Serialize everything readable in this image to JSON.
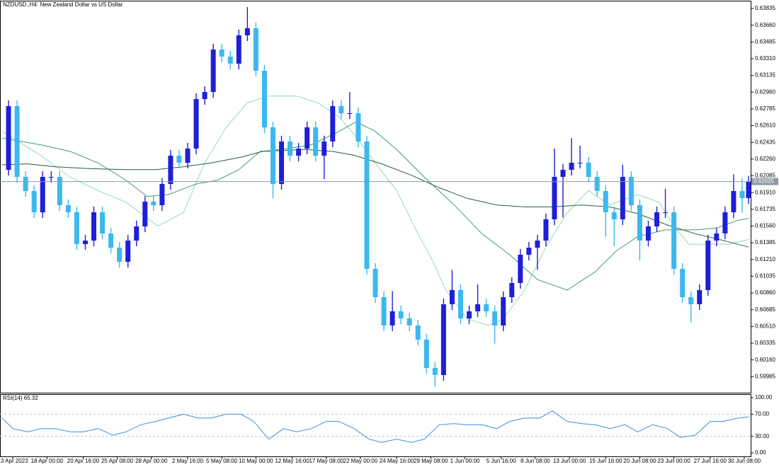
{
  "chart_data": [
    {
      "type": "candlestick",
      "title": "NZDUSD.,H4:  New Zealand Dollar vs US Dollar",
      "up_color": "#1f1fd8",
      "down_color": "#3cb8f0",
      "xlim": [
        0,
        352
      ],
      "ylim": [
        0.59817,
        0.63909
      ],
      "xticks": [
        {
          "value": 6,
          "label": "13 Apr 2023"
        },
        {
          "value": 22,
          "label": "18 Apr 00:00"
        },
        {
          "value": 39,
          "label": "20 Apr 16:00"
        },
        {
          "value": 55,
          "label": "25 Apr 08:00"
        },
        {
          "value": 71,
          "label": "28 Apr 00:00"
        },
        {
          "value": 88,
          "label": "2 May 16:00"
        },
        {
          "value": 104,
          "label": "5 May 08:00"
        },
        {
          "value": 120,
          "label": "10 May 00:00"
        },
        {
          "value": 137,
          "label": "12 May 16:00"
        },
        {
          "value": 153,
          "label": "17 May 08:00"
        },
        {
          "value": 169,
          "label": "22 May 00:00"
        },
        {
          "value": 186,
          "label": "24 May 16:00"
        },
        {
          "value": 202,
          "label": "29 May 08:00"
        },
        {
          "value": 218,
          "label": "1 Jun 00:00"
        },
        {
          "value": 235,
          "label": "5 Jun 16:00"
        },
        {
          "value": 251,
          "label": "8 Jun 08:00"
        },
        {
          "value": 267,
          "label": "13 Jun 00:00"
        },
        {
          "value": 284,
          "label": "15 Jun 16:00"
        },
        {
          "value": 300,
          "label": "20 Jun 08:00"
        },
        {
          "value": 316,
          "label": "23 Jun 00:00"
        },
        {
          "value": 333,
          "label": "27 Jun 16:00"
        },
        {
          "value": 349,
          "label": "30 Jun 08:00"
        }
      ],
      "yticks": [
        {
          "value": 0.63835,
          "label": "0.63835"
        },
        {
          "value": 0.6366,
          "label": "0.63660"
        },
        {
          "value": 0.63485,
          "label": "0.63485"
        },
        {
          "value": 0.6331,
          "label": "0.63310"
        },
        {
          "value": 0.63135,
          "label": "0.63135"
        },
        {
          "value": 0.6296,
          "label": "0.62960"
        },
        {
          "value": 0.62785,
          "label": "0.62785"
        },
        {
          "value": 0.6261,
          "label": "0.62610"
        },
        {
          "value": 0.62435,
          "label": "0.62435"
        },
        {
          "value": 0.6226,
          "label": "0.62260"
        },
        {
          "value": 0.62085,
          "label": "0.62085"
        },
        {
          "value": 0.6191,
          "label": "0.61910"
        },
        {
          "value": 0.61735,
          "label": "0.61735"
        },
        {
          "value": 0.6156,
          "label": "0.61560"
        },
        {
          "value": 0.61385,
          "label": "0.61385"
        },
        {
          "value": 0.6121,
          "label": "0.61210"
        },
        {
          "value": 0.61035,
          "label": "0.61035"
        },
        {
          "value": 0.6086,
          "label": "0.60860"
        },
        {
          "value": 0.60685,
          "label": "0.60685"
        },
        {
          "value": 0.6051,
          "label": "0.60510"
        },
        {
          "value": 0.60335,
          "label": "0.60335"
        },
        {
          "value": 0.6016,
          "label": "0.60160"
        },
        {
          "value": 0.59985,
          "label": "0.59985"
        }
      ],
      "current_price": 0.62025,
      "x": [
        4,
        8,
        12,
        16,
        20,
        24,
        28,
        32,
        36,
        40,
        44,
        48,
        52,
        56,
        60,
        64,
        68,
        72,
        76,
        80,
        84,
        88,
        92,
        96,
        100,
        104,
        108,
        112,
        116,
        120,
        124,
        128,
        132,
        136,
        140,
        144,
        148,
        152,
        156,
        160,
        164,
        168,
        172,
        176,
        180,
        184,
        188,
        192,
        196,
        200,
        204,
        208,
        212,
        216,
        220,
        224,
        228,
        232,
        236,
        240,
        244,
        248,
        252,
        256,
        260,
        264,
        268,
        272,
        276,
        280,
        284,
        288,
        292,
        296,
        300,
        304,
        308,
        312,
        316,
        320,
        324,
        328,
        332,
        336,
        340,
        344,
        348,
        351
      ],
      "open": [
        0.62148,
        0.62814,
        0.62074,
        0.61926,
        0.61704,
        0.62074,
        0.62074,
        0.61778,
        0.61704,
        0.61371,
        0.61408,
        0.61704,
        0.61482,
        0.61334,
        0.61186,
        0.61408,
        0.61556,
        0.61815,
        0.61778,
        0.62,
        0.62296,
        0.62222,
        0.6237,
        0.62888,
        0.62962,
        0.63406,
        0.63332,
        0.63258,
        0.63554,
        0.63628,
        0.63184,
        0.62592,
        0.62,
        0.62444,
        0.62296,
        0.6237,
        0.62592,
        0.62296,
        0.62444,
        0.62814,
        0.6274,
        0.6274,
        0.62444,
        0.61112,
        0.60816,
        0.6052,
        0.60668,
        0.60594,
        0.6052,
        0.60372,
        0.60076,
        0.60002,
        0.60742,
        0.6089,
        0.60594,
        0.60668,
        0.60742,
        0.60668,
        0.6052,
        0.60816,
        0.60964,
        0.6126,
        0.61334,
        0.61408,
        0.6163,
        0.62074,
        0.62148,
        0.62222,
        0.62222,
        0.62074,
        0.61926,
        0.61704,
        0.6163,
        0.62074,
        0.61778,
        0.61408,
        0.61556,
        0.61704,
        0.61704,
        0.61112,
        0.60816,
        0.60742,
        0.6089,
        0.61408,
        0.61482,
        0.61704,
        0.61926,
        0.61852
      ],
      "high": [
        0.62874,
        0.62874,
        0.62134,
        0.61986,
        0.62134,
        0.62134,
        0.62134,
        0.61838,
        0.61764,
        0.61468,
        0.61764,
        0.61764,
        0.61542,
        0.61394,
        0.61468,
        0.61616,
        0.61875,
        0.61875,
        0.6206,
        0.62356,
        0.62356,
        0.6243,
        0.62948,
        0.63022,
        0.63466,
        0.63466,
        0.63392,
        0.63614,
        0.6385,
        0.63688,
        0.63244,
        0.62652,
        0.62504,
        0.62504,
        0.6243,
        0.62652,
        0.62652,
        0.62504,
        0.62874,
        0.62874,
        0.6296,
        0.628,
        0.62504,
        0.61172,
        0.60876,
        0.6088,
        0.60728,
        0.60654,
        0.6058,
        0.60432,
        0.60136,
        0.60802,
        0.611,
        0.6095,
        0.60728,
        0.6095,
        0.60802,
        0.60728,
        0.60876,
        0.61024,
        0.6132,
        0.61394,
        0.61468,
        0.6169,
        0.6237,
        0.62208,
        0.6248,
        0.624,
        0.62282,
        0.62134,
        0.61986,
        0.61764,
        0.622,
        0.62134,
        0.61838,
        0.61616,
        0.61764,
        0.6195,
        0.61764,
        0.61172,
        0.60876,
        0.6095,
        0.61468,
        0.61542,
        0.61764,
        0.621,
        0.6206,
        0.62085
      ],
      "low": [
        0.62088,
        0.62014,
        0.61866,
        0.61644,
        0.61644,
        0.62014,
        0.61718,
        0.61644,
        0.61311,
        0.61311,
        0.61348,
        0.61422,
        0.61274,
        0.61126,
        0.61126,
        0.61348,
        0.61496,
        0.61718,
        0.61718,
        0.6194,
        0.62162,
        0.62162,
        0.6231,
        0.62828,
        0.62902,
        0.63272,
        0.63198,
        0.63198,
        0.63494,
        0.63124,
        0.62532,
        0.6185,
        0.6194,
        0.62236,
        0.62236,
        0.6231,
        0.62236,
        0.6205,
        0.62384,
        0.6268,
        0.6268,
        0.62384,
        0.61052,
        0.60756,
        0.6046,
        0.6046,
        0.60534,
        0.6046,
        0.60312,
        0.60016,
        0.5988,
        0.59942,
        0.60682,
        0.60534,
        0.60534,
        0.60608,
        0.60608,
        0.6033,
        0.6046,
        0.60756,
        0.60904,
        0.612,
        0.611,
        0.61348,
        0.6157,
        0.6165,
        0.62088,
        0.62162,
        0.62014,
        0.61866,
        0.6145,
        0.6135,
        0.6157,
        0.61718,
        0.612,
        0.61348,
        0.61496,
        0.61644,
        0.61052,
        0.60756,
        0.6055,
        0.60682,
        0.6083,
        0.61348,
        0.61422,
        0.61644,
        0.617,
        0.61792
      ],
      "close": [
        0.62814,
        0.62074,
        0.61926,
        0.61704,
        0.62074,
        0.62074,
        0.61778,
        0.61704,
        0.61371,
        0.61408,
        0.61704,
        0.61482,
        0.61334,
        0.61186,
        0.61408,
        0.61556,
        0.61815,
        0.61778,
        0.62,
        0.62296,
        0.62222,
        0.6237,
        0.62888,
        0.62962,
        0.63406,
        0.63332,
        0.63258,
        0.63554,
        0.63628,
        0.63184,
        0.62592,
        0.62,
        0.62444,
        0.62296,
        0.6237,
        0.62592,
        0.62296,
        0.62444,
        0.62814,
        0.6274,
        0.6274,
        0.62444,
        0.61112,
        0.60816,
        0.6052,
        0.60668,
        0.60594,
        0.6052,
        0.60372,
        0.60076,
        0.60002,
        0.60742,
        0.6089,
        0.60594,
        0.60668,
        0.60742,
        0.60668,
        0.6052,
        0.60816,
        0.60964,
        0.6126,
        0.61334,
        0.61408,
        0.6163,
        0.62074,
        0.62148,
        0.62222,
        0.62222,
        0.62074,
        0.61926,
        0.61704,
        0.6163,
        0.62074,
        0.61778,
        0.61408,
        0.61556,
        0.61704,
        0.61704,
        0.61112,
        0.60816,
        0.60742,
        0.6089,
        0.61408,
        0.61482,
        0.61704,
        0.61926,
        0.61852,
        0.62025
      ],
      "series": [
        {
          "color": "#8fdcb0",
          "x": [
            1,
            19,
            33,
            46,
            59,
            74,
            86,
            96,
            106,
            116,
            126,
            139,
            149,
            159,
            166,
            176,
            186,
            196,
            203,
            209,
            219,
            229,
            236,
            246,
            256,
            266,
            276,
            286,
            299,
            309,
            316,
            323,
            332,
            342,
            351
          ],
          "values": [
            0.6255,
            0.623,
            0.6207,
            0.6193,
            0.6181,
            0.6156,
            0.617,
            0.6222,
            0.6259,
            0.6285,
            0.6292,
            0.6292,
            0.6285,
            0.627,
            0.6252,
            0.6222,
            0.6193,
            0.6148,
            0.6119,
            0.6089,
            0.6059,
            0.6052,
            0.6059,
            0.6089,
            0.6134,
            0.617,
            0.6193,
            0.6178,
            0.6189,
            0.6181,
            0.6156,
            0.6137,
            0.6137,
            0.6137,
            0.6142
          ]
        },
        {
          "color": "#3f9f6f",
          "x": [
            1,
            19,
            33,
            46,
            59,
            69,
            79,
            92,
            102,
            112,
            122,
            132,
            146,
            159,
            167,
            176,
            186,
            199,
            213,
            226,
            239,
            252,
            266,
            279,
            289,
            299,
            312,
            326,
            336,
            346,
            351
          ],
          "values": [
            0.6248,
            0.6241,
            0.6234,
            0.6222,
            0.6204,
            0.6187,
            0.6189,
            0.62,
            0.6204,
            0.6215,
            0.6234,
            0.6236,
            0.6241,
            0.6255,
            0.6265,
            0.6255,
            0.6236,
            0.6207,
            0.6178,
            0.6148,
            0.6126,
            0.61,
            0.6089,
            0.6108,
            0.613,
            0.6145,
            0.6152,
            0.6152,
            0.6154,
            0.6162,
            0.6164
          ]
        },
        {
          "color": "#245f3f",
          "x": [
            1,
            13,
            26,
            43,
            59,
            73,
            86,
            99,
            113,
            123,
            143,
            156,
            166,
            179,
            193,
            206,
            219,
            233,
            246,
            259,
            273,
            286,
            299,
            313,
            326,
            339,
            351
          ],
          "values": [
            0.622,
            0.6221,
            0.6218,
            0.6216,
            0.6215,
            0.6215,
            0.6218,
            0.6222,
            0.6228,
            0.6234,
            0.6236,
            0.6234,
            0.623,
            0.6221,
            0.6209,
            0.6196,
            0.6185,
            0.6178,
            0.6176,
            0.6176,
            0.6178,
            0.6176,
            0.6169,
            0.6157,
            0.6148,
            0.6141,
            0.6134
          ]
        }
      ]
    },
    {
      "type": "line",
      "title": "RSI(14) 65.32",
      "color": "#3a8fe0",
      "ylim": [
        -6.3,
        105.1
      ],
      "yticks": [
        {
          "value": 100,
          "label": "100.00"
        },
        {
          "value": 70,
          "label": "70.00"
        },
        {
          "value": 30,
          "label": "30.00"
        },
        {
          "value": 0,
          "label": "0.00"
        }
      ],
      "levels": [
        70,
        30
      ],
      "x": [
        1,
        6,
        13,
        19,
        26,
        33,
        39,
        46,
        53,
        59,
        66,
        73,
        79,
        86,
        93,
        99,
        106,
        113,
        119,
        126,
        133,
        139,
        146,
        153,
        159,
        166,
        173,
        179,
        186,
        193,
        199,
        206,
        213,
        219,
        226,
        233,
        239,
        246,
        253,
        259,
        266,
        273,
        279,
        286,
        293,
        299,
        306,
        313,
        319,
        326,
        333,
        339,
        346,
        351
      ],
      "values": [
        63,
        44,
        38,
        44,
        44,
        38,
        38,
        44,
        32,
        38,
        51,
        57,
        63,
        70,
        63,
        63,
        70,
        70,
        57,
        25,
        44,
        38,
        44,
        57,
        57,
        44,
        25,
        19,
        25,
        19,
        25,
        51,
        53,
        51,
        51,
        44,
        57,
        63,
        63,
        76,
        57,
        53,
        51,
        44,
        51,
        38,
        51,
        44,
        28,
        32,
        57,
        57,
        63,
        65.32
      ]
    }
  ]
}
